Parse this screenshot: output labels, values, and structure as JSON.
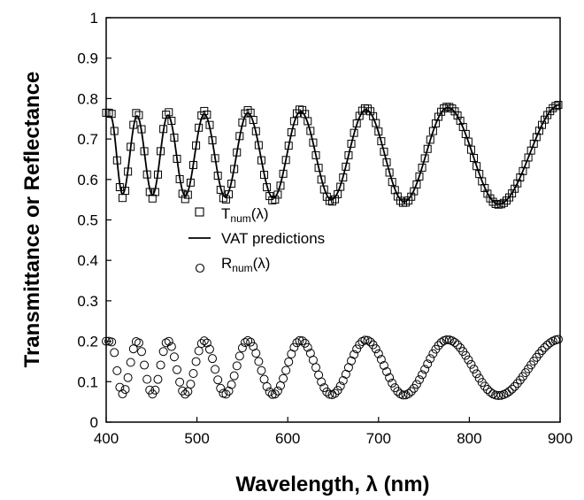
{
  "chart_data": {
    "type": "scatter",
    "xlabel": "Wavelength, λ (nm)",
    "ylabel": "Transmittance or Reflectance",
    "xlim": [
      400,
      900
    ],
    "ylim": [
      0,
      1
    ],
    "x_ticks": [
      400,
      500,
      600,
      700,
      800,
      900
    ],
    "y_ticks": [
      0,
      0.1,
      0.2,
      0.3,
      0.4,
      0.5,
      0.6,
      0.7,
      0.8,
      0.9,
      1
    ],
    "grid": false,
    "legend_position": "center-left",
    "legend": [
      {
        "label_main": "T",
        "label_sub": "num",
        "label_rest": "(λ)",
        "marker": "square"
      },
      {
        "label_main": "VAT predictions",
        "label_sub": "",
        "label_rest": "",
        "marker": "line"
      },
      {
        "label_main": "R",
        "label_sub": "num",
        "label_rest": "(λ)",
        "marker": "circle"
      }
    ],
    "series": [
      {
        "name": "Tnum(λ)",
        "marker": "square",
        "model": "fringe",
        "x": [
          400,
          900
        ],
        "step": 3,
        "mean": 0.66,
        "amplitude": [
          0.21,
          0.25
        ],
        "extrema_x": [
          405,
          418,
          434,
          451,
          468,
          487,
          508,
          531,
          556,
          584,
          614,
          648,
          686,
          728,
          776,
          832,
          900
        ]
      },
      {
        "name": "VAT predictions",
        "marker": "line",
        "model": "fringe",
        "x": [
          400,
          900
        ],
        "step": 1,
        "mean": 0.66,
        "amplitude": [
          0.19,
          0.25
        ],
        "extrema_x": [
          405,
          418,
          434,
          451,
          468,
          487,
          508,
          531,
          556,
          584,
          614,
          648,
          686,
          728,
          776,
          832,
          900
        ]
      },
      {
        "name": "Rnum(λ)",
        "marker": "circle",
        "model": "fringe",
        "x": [
          400,
          900
        ],
        "step": 3,
        "mean": 0.135,
        "amplitude": [
          0.13,
          0.14
        ],
        "extrema_x": [
          405,
          418,
          434,
          451,
          468,
          487,
          508,
          531,
          556,
          584,
          614,
          648,
          686,
          728,
          776,
          832,
          900
        ]
      }
    ]
  }
}
